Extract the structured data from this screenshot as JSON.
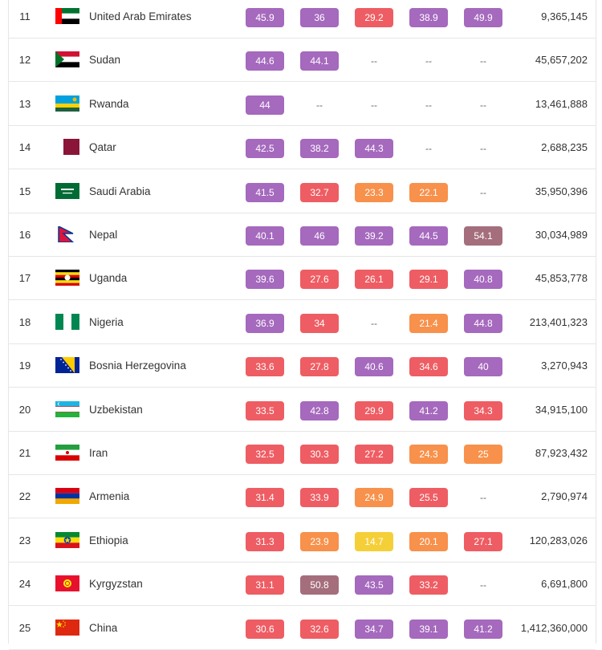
{
  "colors": {
    "purple": "#a569bd",
    "red": "#ee5d63",
    "orange": "#f7914b",
    "yellow": "#f5cf38",
    "brown": "#a46e7d"
  },
  "rows": [
    {
      "rank": "11",
      "country": "United Arab Emirates",
      "flag": "uae-flag",
      "values": [
        [
          "45.9",
          "purple"
        ],
        [
          "36",
          "purple"
        ],
        [
          "29.2",
          "red"
        ],
        [
          "38.9",
          "purple"
        ],
        [
          "49.9",
          "purple"
        ]
      ],
      "population": "9,365,145"
    },
    {
      "rank": "12",
      "country": "Sudan",
      "flag": "sudan-flag",
      "values": [
        [
          "44.6",
          "purple"
        ],
        [
          "44.1",
          "purple"
        ],
        [
          "--",
          "empty"
        ],
        [
          "--",
          "empty"
        ],
        [
          "--",
          "empty"
        ]
      ],
      "population": "45,657,202"
    },
    {
      "rank": "13",
      "country": "Rwanda",
      "flag": "rwanda-flag",
      "values": [
        [
          "44",
          "purple"
        ],
        [
          "--",
          "empty"
        ],
        [
          "--",
          "empty"
        ],
        [
          "--",
          "empty"
        ],
        [
          "--",
          "empty"
        ]
      ],
      "population": "13,461,888"
    },
    {
      "rank": "14",
      "country": "Qatar",
      "flag": "qatar-flag",
      "values": [
        [
          "42.5",
          "purple"
        ],
        [
          "38.2",
          "purple"
        ],
        [
          "44.3",
          "purple"
        ],
        [
          "--",
          "empty"
        ],
        [
          "--",
          "empty"
        ]
      ],
      "population": "2,688,235"
    },
    {
      "rank": "15",
      "country": "Saudi Arabia",
      "flag": "saudi-arabia-flag",
      "values": [
        [
          "41.5",
          "purple"
        ],
        [
          "32.7",
          "red"
        ],
        [
          "23.3",
          "orange"
        ],
        [
          "22.1",
          "orange"
        ],
        [
          "--",
          "empty"
        ]
      ],
      "population": "35,950,396"
    },
    {
      "rank": "16",
      "country": "Nepal",
      "flag": "nepal-flag",
      "values": [
        [
          "40.1",
          "purple"
        ],
        [
          "46",
          "purple"
        ],
        [
          "39.2",
          "purple"
        ],
        [
          "44.5",
          "purple"
        ],
        [
          "54.1",
          "brown"
        ]
      ],
      "population": "30,034,989"
    },
    {
      "rank": "17",
      "country": "Uganda",
      "flag": "uganda-flag",
      "values": [
        [
          "39.6",
          "purple"
        ],
        [
          "27.6",
          "red"
        ],
        [
          "26.1",
          "red"
        ],
        [
          "29.1",
          "red"
        ],
        [
          "40.8",
          "purple"
        ]
      ],
      "population": "45,853,778"
    },
    {
      "rank": "18",
      "country": "Nigeria",
      "flag": "nigeria-flag",
      "values": [
        [
          "36.9",
          "purple"
        ],
        [
          "34",
          "red"
        ],
        [
          "--",
          "empty"
        ],
        [
          "21.4",
          "orange"
        ],
        [
          "44.8",
          "purple"
        ]
      ],
      "population": "213,401,323"
    },
    {
      "rank": "19",
      "country": "Bosnia Herzegovina",
      "flag": "bosnia-flag",
      "values": [
        [
          "33.6",
          "red"
        ],
        [
          "27.8",
          "red"
        ],
        [
          "40.6",
          "purple"
        ],
        [
          "34.6",
          "red"
        ],
        [
          "40",
          "purple"
        ]
      ],
      "population": "3,270,943"
    },
    {
      "rank": "20",
      "country": "Uzbekistan",
      "flag": "uzbekistan-flag",
      "values": [
        [
          "33.5",
          "red"
        ],
        [
          "42.8",
          "purple"
        ],
        [
          "29.9",
          "red"
        ],
        [
          "41.2",
          "purple"
        ],
        [
          "34.3",
          "red"
        ]
      ],
      "population": "34,915,100"
    },
    {
      "rank": "21",
      "country": "Iran",
      "flag": "iran-flag",
      "values": [
        [
          "32.5",
          "red"
        ],
        [
          "30.3",
          "red"
        ],
        [
          "27.2",
          "red"
        ],
        [
          "24.3",
          "orange"
        ],
        [
          "25",
          "orange"
        ]
      ],
      "population": "87,923,432"
    },
    {
      "rank": "22",
      "country": "Armenia",
      "flag": "armenia-flag",
      "values": [
        [
          "31.4",
          "red"
        ],
        [
          "33.9",
          "red"
        ],
        [
          "24.9",
          "orange"
        ],
        [
          "25.5",
          "red"
        ],
        [
          "--",
          "empty"
        ]
      ],
      "population": "2,790,974"
    },
    {
      "rank": "23",
      "country": "Ethiopia",
      "flag": "ethiopia-flag",
      "values": [
        [
          "31.3",
          "red"
        ],
        [
          "23.9",
          "orange"
        ],
        [
          "14.7",
          "yellow"
        ],
        [
          "20.1",
          "orange"
        ],
        [
          "27.1",
          "red"
        ]
      ],
      "population": "120,283,026"
    },
    {
      "rank": "24",
      "country": "Kyrgyzstan",
      "flag": "kyrgyzstan-flag",
      "values": [
        [
          "31.1",
          "red"
        ],
        [
          "50.8",
          "brown"
        ],
        [
          "43.5",
          "purple"
        ],
        [
          "33.2",
          "red"
        ],
        [
          "--",
          "empty"
        ]
      ],
      "population": "6,691,800"
    },
    {
      "rank": "25",
      "country": "China",
      "flag": "china-flag",
      "values": [
        [
          "30.6",
          "red"
        ],
        [
          "32.6",
          "red"
        ],
        [
          "34.7",
          "purple"
        ],
        [
          "39.1",
          "purple"
        ],
        [
          "41.2",
          "purple"
        ]
      ],
      "population": "1,412,360,000"
    }
  ]
}
